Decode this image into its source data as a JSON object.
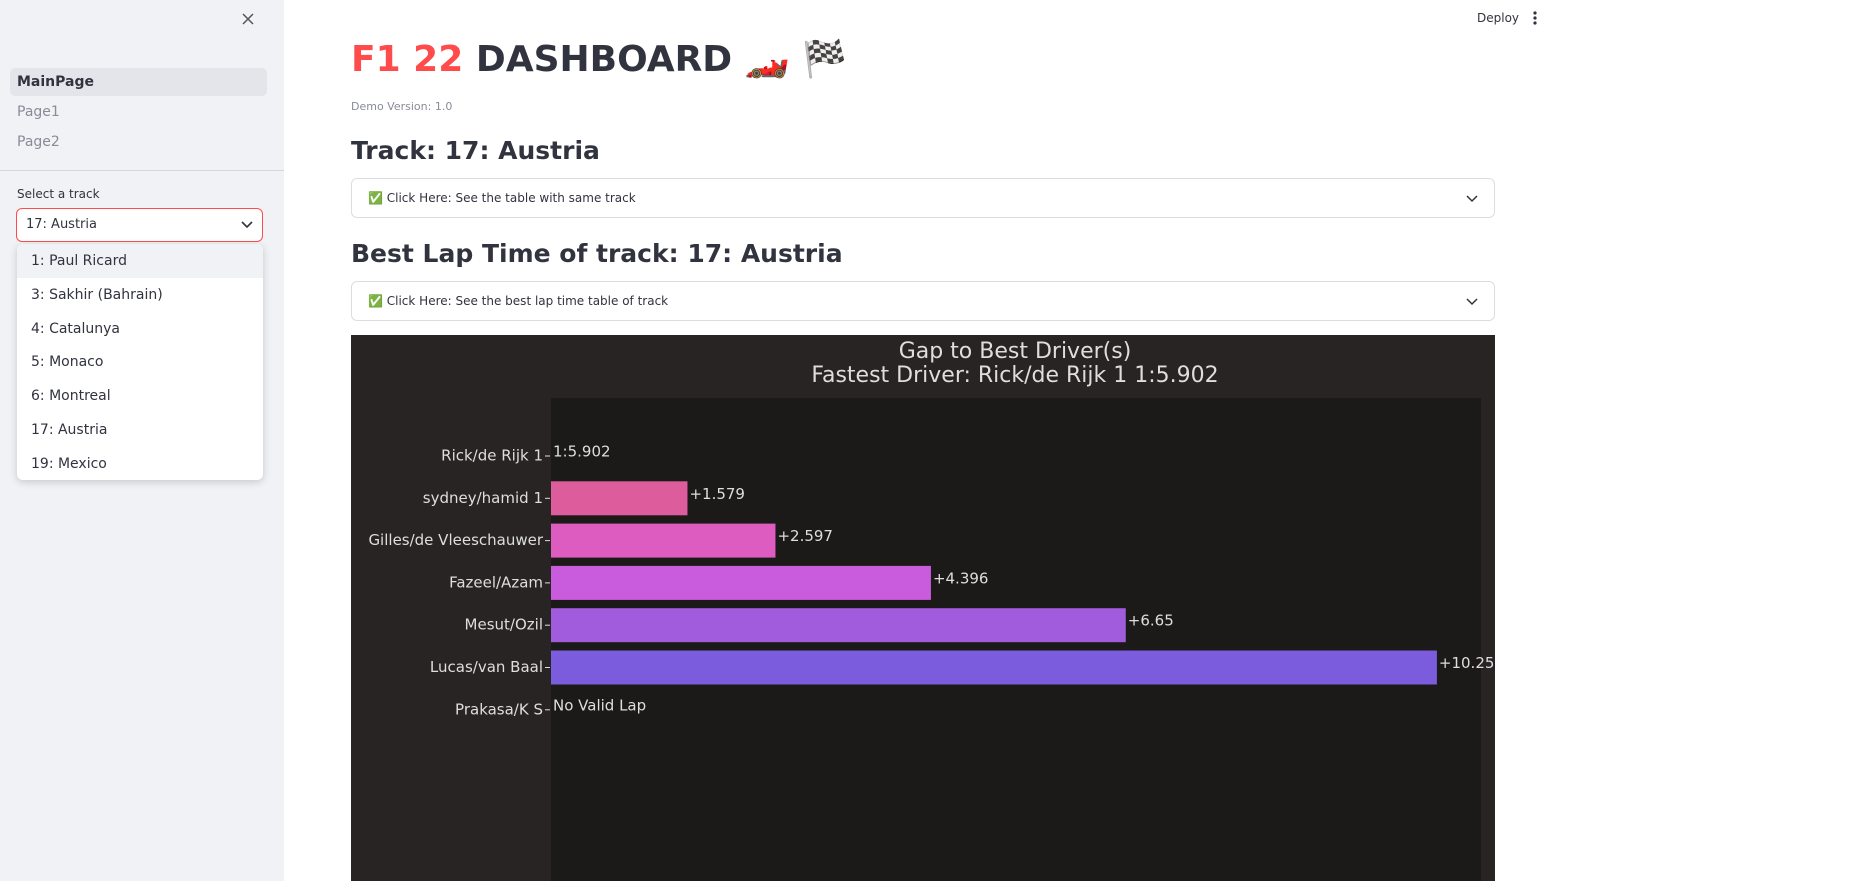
{
  "sidebar": {
    "nav": [
      "MainPage",
      "Page1",
      "Page2"
    ],
    "select_label": "Select a track",
    "select_value": "17: Austria",
    "options": [
      "1: Paul Ricard",
      "3: Sakhir (Bahrain)",
      "4: Catalunya",
      "5: Monaco",
      "6: Montreal",
      "17: Austria",
      "19: Mexico"
    ]
  },
  "toolbar": {
    "deploy": "Deploy"
  },
  "header": {
    "title_accent": "F1 22",
    "title_rest": "DASHBOARD 🏎️ 🏁",
    "version": "Demo Version: 1.0"
  },
  "sections": [
    {
      "heading": "Track: 17: Austria",
      "expander": "✅ Click Here: See the table with same track"
    },
    {
      "heading": "Best Lap Time of track: 17: Austria",
      "expander": "✅ Click Here: See the best lap time table of track"
    }
  ],
  "chart_data": {
    "type": "barh",
    "title": [
      "Gap to Best Driver(s)",
      "Fastest Driver: Rick/de Rijk 1 1:5.902"
    ],
    "categories": [
      "Rick/de Rijk 1",
      "sydney/hamid 1",
      "Gilles/de Vleeschauwer",
      "Fazeel/Azam",
      "Mesut/Ozil",
      "Lucas/van Baal",
      "Prakasa/K S"
    ],
    "values": [
      null,
      1.579,
      2.597,
      4.396,
      6.65,
      10.25,
      null
    ],
    "value_labels": [
      "1:5.902",
      "+1.579",
      "+2.597",
      "+4.396",
      "+6.65",
      "+10.25",
      "No Valid Lap"
    ],
    "colors": [
      "#e05c80",
      "#dc5c9c",
      "#dc5cc0",
      "#c85cdc",
      "#a05cdc",
      "#7a5cdc",
      "#6a5cdc"
    ],
    "xlim": [
      0,
      10.76
    ]
  }
}
